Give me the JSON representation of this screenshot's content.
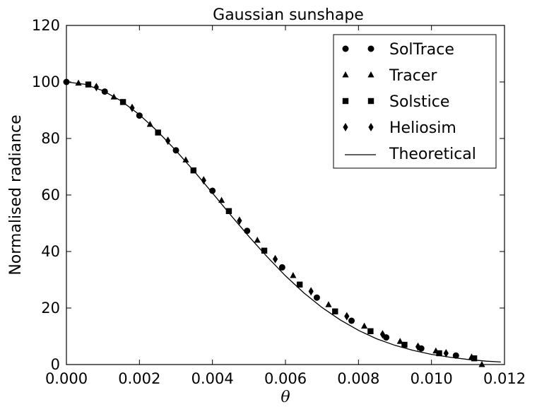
{
  "chart_data": {
    "type": "line",
    "title": "Gaussian sunshape",
    "xlabel": "θ",
    "ylabel": "Normalised radiance",
    "xlim": [
      0.0,
      0.012
    ],
    "ylim": [
      0,
      120
    ],
    "xticks": [
      "0.000",
      "0.002",
      "0.004",
      "0.006",
      "0.008",
      "0.010",
      "0.012"
    ],
    "yticks": [
      "0",
      "20",
      "40",
      "60",
      "80",
      "100",
      "120"
    ],
    "grid": false,
    "legend_position": "top-right",
    "series": [
      {
        "name": "SolTrace",
        "marker": "circle",
        "x": [
          0.0,
          0.00105,
          0.002,
          0.003,
          0.004,
          0.00495,
          0.00591,
          0.00686,
          0.00781,
          0.00876,
          0.00972,
          0.01067
        ],
        "y": [
          100.0,
          96.6,
          88.1,
          75.8,
          61.5,
          47.3,
          34.4,
          23.7,
          15.5,
          9.6,
          5.7,
          3.2
        ]
      },
      {
        "name": "Tracer",
        "marker": "triangle",
        "x": [
          0.00033,
          0.0013,
          0.00229,
          0.00327,
          0.00425,
          0.00523,
          0.00621,
          0.00718,
          0.00816,
          0.00914,
          0.01012,
          0.0111,
          0.01138
        ],
        "y": [
          99.6,
          94.7,
          85.0,
          72.4,
          58.1,
          44.0,
          31.5,
          21.2,
          13.6,
          8.2,
          4.8,
          2.7,
          0.0
        ]
      },
      {
        "name": "Solstice",
        "marker": "square",
        "x": [
          0.0006,
          0.00155,
          0.00251,
          0.00348,
          0.00445,
          0.00542,
          0.00639,
          0.00736,
          0.00833,
          0.00926,
          0.01021,
          0.01117
        ],
        "y": [
          99.1,
          92.9,
          82.1,
          68.7,
          54.3,
          40.3,
          28.3,
          18.8,
          11.8,
          7.0,
          4.0,
          2.2
        ]
      },
      {
        "name": "Heliosim",
        "marker": "diamond",
        "x": [
          0.00082,
          0.0018,
          0.00278,
          0.00376,
          0.00474,
          0.00572,
          0.0067,
          0.00768,
          0.00866,
          0.00963,
          0.0104
        ],
        "y": [
          98.2,
          90.8,
          79.2,
          65.2,
          50.9,
          37.3,
          25.9,
          17.1,
          10.7,
          6.3,
          4.0
        ]
      },
      {
        "name": "Theoretical",
        "marker": "line",
        "x": [
          0.0,
          0.0005,
          0.001,
          0.0015,
          0.002,
          0.0025,
          0.003,
          0.0035,
          0.004,
          0.0045,
          0.005,
          0.0055,
          0.006,
          0.0065,
          0.007,
          0.0075,
          0.008,
          0.0085,
          0.009,
          0.0095,
          0.01,
          0.0105,
          0.011,
          0.0115,
          0.0119
        ],
        "y": [
          100.0,
          99.2,
          96.9,
          93.3,
          88.4,
          82.5,
          75.7,
          68.4,
          60.7,
          52.9,
          45.3,
          38.1,
          31.4,
          25.4,
          20.2,
          15.8,
          12.1,
          9.1,
          6.8,
          5.0,
          3.6,
          2.6,
          1.8,
          1.2,
          0.9
        ]
      }
    ]
  }
}
